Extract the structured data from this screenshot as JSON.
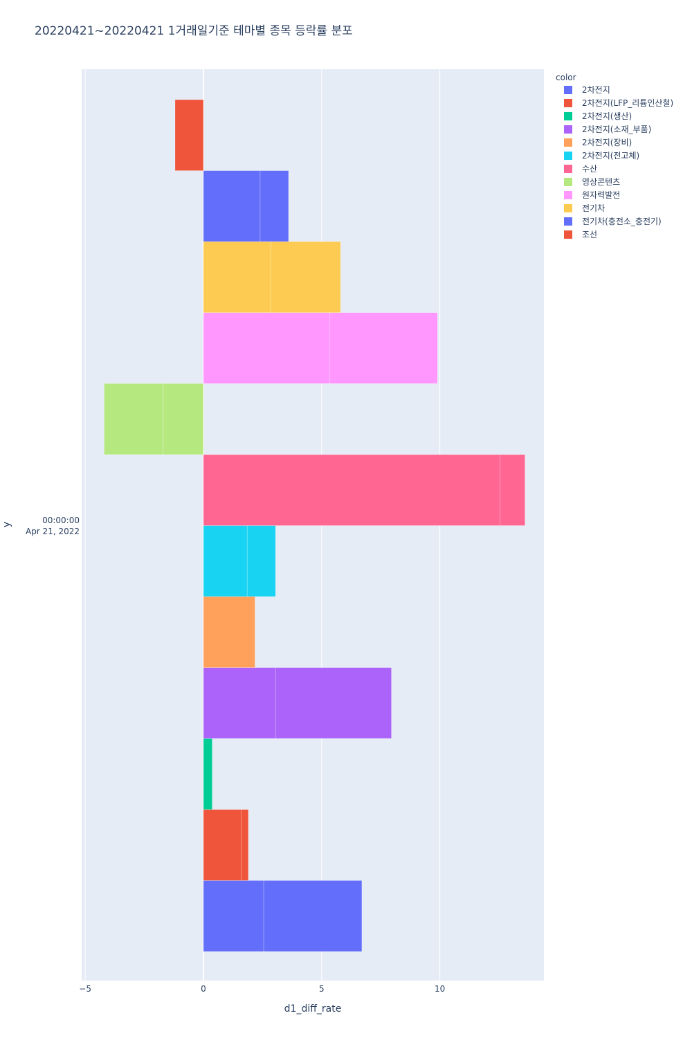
{
  "chart_data": {
    "type": "bar",
    "orientation": "horizontal",
    "barmode": "stack",
    "title": "20220421~20220421 1거래일기준 테마별 종목 등락률 분포",
    "xlabel": "d1_diff_rate",
    "ylabel": "y",
    "y_category_lines": [
      "00:00:00",
      "Apr 21, 2022"
    ],
    "xlim": [
      -5.15,
      14.4
    ],
    "xticks": [
      -5,
      0,
      5,
      10
    ],
    "xtick_labels": [
      "−5",
      "0",
      "5",
      "10"
    ],
    "grid": true,
    "legend_title": "color",
    "legend_position": "top-right",
    "series": [
      {
        "name": "2차전지",
        "color": "#636efa",
        "segments": [
          2.55,
          4.15
        ]
      },
      {
        "name": "2차전지(LFP_리튬인산철)",
        "color": "#ef553b",
        "segments": [
          1.6,
          0.3
        ]
      },
      {
        "name": "2차전지(생산)",
        "color": "#00cc96",
        "segments": [
          0.37
        ]
      },
      {
        "name": "2차전지(소재_부품)",
        "color": "#ab63fa",
        "segments": [
          3.05,
          4.9
        ]
      },
      {
        "name": "2차전지(장비)",
        "color": "#ffa15a",
        "segments": [
          2.18
        ]
      },
      {
        "name": "2차전지(전고체)",
        "color": "#19d3f3",
        "segments": [
          1.85,
          1.2
        ]
      },
      {
        "name": "수산",
        "color": "#ff6692",
        "segments": [
          12.55,
          1.05
        ]
      },
      {
        "name": "영상콘텐츠",
        "color": "#b6e880",
        "segments": [
          -1.7,
          -2.5
        ]
      },
      {
        "name": "원자력발전",
        "color": "#ff97ff",
        "segments": [
          5.35,
          4.55
        ]
      },
      {
        "name": "전기차",
        "color": "#fecb52",
        "segments": [
          2.85,
          2.95
        ]
      },
      {
        "name": "전기차(충전소_충전기)",
        "color": "#636efa",
        "segments": [
          2.4,
          1.2
        ]
      },
      {
        "name": "조선",
        "color": "#ef553b",
        "segments": [
          -1.2
        ]
      }
    ]
  }
}
